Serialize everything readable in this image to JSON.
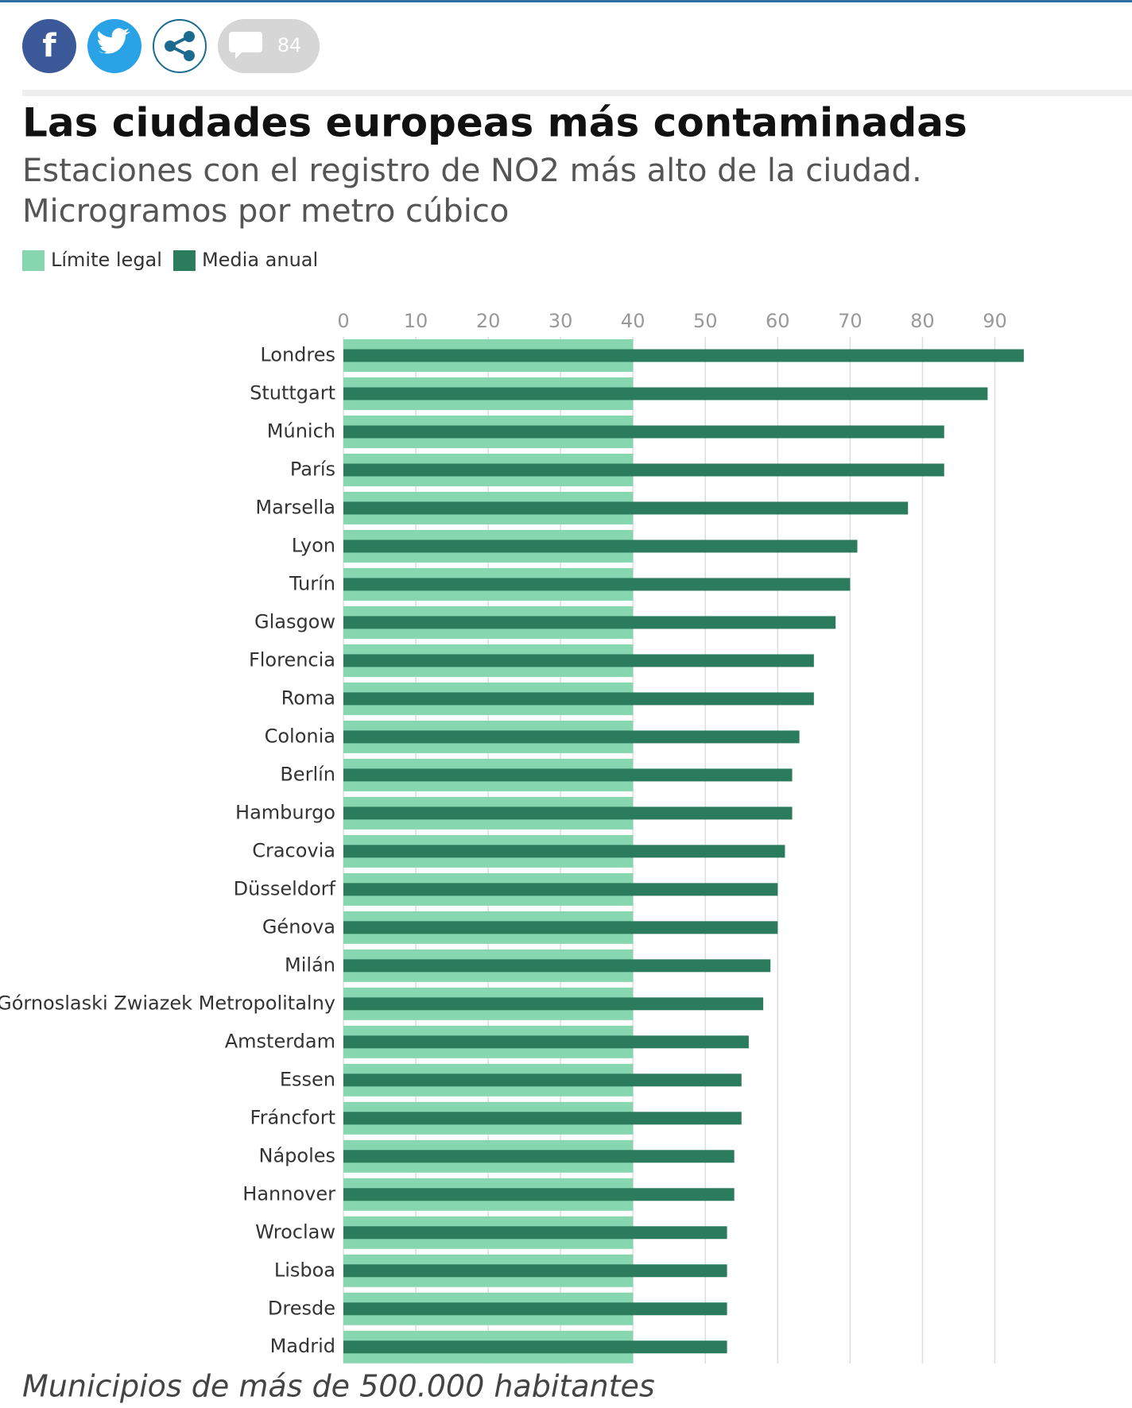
{
  "header": {
    "comment_count": "84"
  },
  "chart_data": {
    "type": "bar",
    "orientation": "horizontal",
    "title": "Las ciudades europeas más contaminadas",
    "subtitle": [
      "Estaciones con el registro de NO2 más alto de la ciudad.",
      "Microgramos por metro cúbico"
    ],
    "categories": [
      "Londres",
      "Stuttgart",
      "Múnich",
      "París",
      "Marsella",
      "Lyon",
      "Turín",
      "Glasgow",
      "Florencia",
      "Roma",
      "Colonia",
      "Berlín",
      "Hamburgo",
      "Cracovia",
      "Düsseldorf",
      "Génova",
      "Milán",
      "Górnoslaski Zwiazek Metropolitalny",
      "Amsterdam",
      "Essen",
      "Fráncfort",
      "Nápoles",
      "Hannover",
      "Wroclaw",
      "Lisboa",
      "Dresde",
      "Madrid"
    ],
    "series": [
      {
        "name": "Límite legal",
        "color": "#86d6b0",
        "values": [
          40,
          40,
          40,
          40,
          40,
          40,
          40,
          40,
          40,
          40,
          40,
          40,
          40,
          40,
          40,
          40,
          40,
          40,
          40,
          40,
          40,
          40,
          40,
          40,
          40,
          40,
          40
        ]
      },
      {
        "name": "Media anual",
        "color": "#2b7b5d",
        "values": [
          94,
          89,
          83,
          83,
          78,
          71,
          70,
          68,
          65,
          65,
          63,
          62,
          62,
          61,
          60,
          60,
          59,
          58,
          56,
          55,
          55,
          54,
          54,
          53,
          53,
          53,
          53
        ]
      }
    ],
    "xlim": [
      0,
      95
    ],
    "xticks": [
      0,
      10,
      20,
      30,
      40,
      50,
      60,
      70,
      80,
      90
    ],
    "grid": true,
    "note": "Municipios de más de 500.000 habitantes"
  }
}
